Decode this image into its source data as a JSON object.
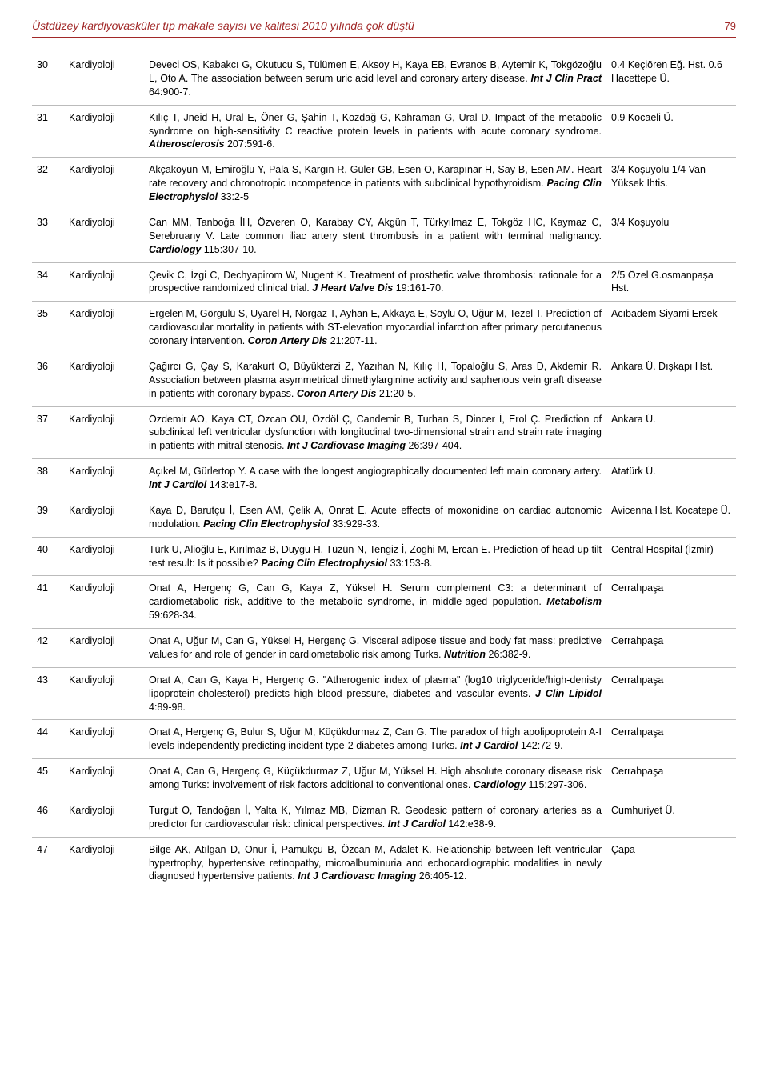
{
  "header": {
    "title": "Üstdüzey kardiyovasküler tıp makale sayısı ve kalitesi 2010 yılında çok düştü",
    "page_number": "79"
  },
  "rows": [
    {
      "num": "30",
      "field": "Kardiyoloji",
      "desc_pre": "Deveci OS, Kabakcı G, Okutucu S, Tülümen E, Aksoy H, Kaya EB, Evranos B, Aytemir K, Tokgözoğlu L, Oto A. The association between serum uric acid level and coronary artery disease. ",
      "journal": "Int J Clin Pract",
      "desc_post": " 64:900-7.",
      "aff": "0.4 Keçiören Eğ. Hst. 0.6 Hacettepe Ü."
    },
    {
      "num": "31",
      "field": "Kardiyoloji",
      "desc_pre": "Kılıç T, Jneid H, Ural E, Öner G, Şahin T, Kozdağ G, Kahraman G, Ural D. Impact of the metabolic syndrome on high-sensitivity C reactive protein levels in patients with acute coronary syndrome. ",
      "journal": "Atherosclerosis",
      "desc_post": " 207:591-6.",
      "aff": "0.9 Kocaeli Ü."
    },
    {
      "num": "32",
      "field": "Kardiyoloji",
      "desc_pre": "Akçakoyun M, Emiroğlu Y, Pala S, Kargın R, Güler GB, Esen O, Karapınar H, Say B, Esen AM. Heart rate recovery and chronotropic ıncompetence in patients with subclinical hypothyroidism. ",
      "journal": "Pacing Clin Electrophysiol",
      "desc_post": " 33:2-5",
      "aff": "3/4 Koşuyolu 1/4 Van Yüksek İhtis."
    },
    {
      "num": "33",
      "field": "Kardiyoloji",
      "desc_pre": "Can MM, Tanboğa İH, Özveren O, Karabay CY, Akgün T, Türkyılmaz E, Tokgöz HC, Kaymaz C, Serebruany V. Late common iliac artery stent thrombosis in a patient with terminal malignancy. ",
      "journal": "Cardiology",
      "desc_post": " 115:307-10.",
      "aff": "3/4 Koşuyolu"
    },
    {
      "num": "34",
      "field": "Kardiyoloji",
      "desc_pre": "Çevik C, İzgi C, Dechyapirom W, Nugent K. Treatment of prosthetic valve thrombosis: rationale for a prospective randomized clinical trial. ",
      "journal": "J Heart Valve Dis",
      "desc_post": " 19:161-70.",
      "aff": "2/5 Özel G.osmanpaşa Hst."
    },
    {
      "num": "35",
      "field": "Kardiyoloji",
      "desc_pre": "Ergelen M, Görgülü S, Uyarel H, Norgaz T, Ayhan E, Akkaya E, Soylu O, Uğur M, Tezel T. Prediction of cardiovascular mortality in patients with ST-elevation myocardial infarction after primary percutaneous coronary intervention. ",
      "journal": "Coron Artery Dis",
      "desc_post": " 21:207-11.",
      "aff": "Acıbadem Siyami Ersek"
    },
    {
      "num": "36",
      "field": "Kardiyoloji",
      "desc_pre": "Çağırcı G, Çay S, Karakurt O, Büyükterzi Z, Yazıhan N, Kılıç H, Topaloğlu S, Aras D, Akdemir R. Association between plasma asymmetrical dimethylarginine activity and saphenous vein graft disease in patients with coronary bypass. ",
      "journal": "Coron Artery Dis",
      "desc_post": " 21:20-5.",
      "aff": "Ankara Ü. Dışkapı Hst."
    },
    {
      "num": "37",
      "field": "Kardiyoloji",
      "desc_pre": "Özdemir AO, Kaya CT, Özcan ÖU, Özdöl Ç, Candemir B, Turhan S, Dincer İ, Erol Ç. Prediction of subclinical left ventricular dysfunction with longitudinal two-dimensional strain and strain rate imaging in patients with mitral stenosis. ",
      "journal": "Int J Cardiovasc Imaging",
      "desc_post": " 26:397-404.",
      "aff": "Ankara Ü."
    },
    {
      "num": "38",
      "field": "Kardiyoloji",
      "desc_pre": "Açıkel M, Gürlertop Y. A case with the longest angiographically documented left main coronary artery. ",
      "journal": "Int J Cardiol",
      "desc_post": " 143:e17-8.",
      "aff": "Atatürk Ü."
    },
    {
      "num": "39",
      "field": "Kardiyoloji",
      "desc_pre": "Kaya D, Barutçu İ, Esen AM, Çelik A, Onrat E. Acute effects of moxonidine on cardiac autonomic modulation. ",
      "journal": "Pacing Clin Electrophysiol",
      "desc_post": " 33:929-33.",
      "aff": "Avicenna Hst. Kocatepe Ü."
    },
    {
      "num": "40",
      "field": "Kardiyoloji",
      "desc_pre": "Türk U, Alioğlu E, Kırılmaz B, Duygu H, Tüzün N, Tengiz İ, Zoghi M, Ercan E. Prediction of head-up tilt test result: Is it possible? ",
      "journal": "Pacing Clin Electrophysiol",
      "desc_post": " 33:153-8.",
      "aff": "Central Hospital (İzmir)"
    },
    {
      "num": "41",
      "field": "Kardiyoloji",
      "desc_pre": "Onat A, Hergenç G, Can G, Kaya Z, Yüksel H. Serum complement C3: a determinant of cardiometabolic risk, additive to the metabolic syndrome, in middle-aged population. ",
      "journal": "Metabolism",
      "desc_post": " 59:628-34.",
      "aff": "Cerrahpaşa"
    },
    {
      "num": "42",
      "field": "Kardiyoloji",
      "desc_pre": "Onat A, Uğur M, Can G, Yüksel H, Hergenç G. Visceral adipose tissue and body fat mass: predictive values for and role of gender in cardiometabolic risk among Turks. ",
      "journal": "Nutrition",
      "desc_post": " 26:382-9.",
      "aff": "Cerrahpaşa"
    },
    {
      "num": "43",
      "field": "Kardiyoloji",
      "desc_pre": "Onat A, Can G, Kaya H, Hergenç G. \"Atherogenic index of plasma\" (log10 triglyceride/high-denisty lipoprotein-cholesterol) predicts high blood pressure, diabetes and vascular events. ",
      "journal": "J Clin Lipidol",
      "desc_post": " 4:89-98.",
      "aff": "Cerrahpaşa"
    },
    {
      "num": "44",
      "field": "Kardiyoloji",
      "desc_pre": "Onat A, Hergenç G, Bulur S, Uğur M, Küçükdurmaz Z, Can G. The paradox of high apolipoprotein A-I levels independently predicting incident type-2 diabetes among Turks. ",
      "journal": "Int J Cardiol",
      "desc_post": " 142:72-9.",
      "aff": "Cerrahpaşa"
    },
    {
      "num": "45",
      "field": "Kardiyoloji",
      "desc_pre": "Onat A, Can G, Hergenç G, Küçükdurmaz Z, Uğur M, Yüksel H. High absolute coronary disease risk among Turks: involvement of risk factors additional to conventional ones. ",
      "journal": "Cardiology",
      "desc_post": " 115:297-306.",
      "aff": "Cerrahpaşa"
    },
    {
      "num": "46",
      "field": "Kardiyoloji",
      "desc_pre": "Turgut O, Tandoğan İ, Yalta K, Yılmaz MB, Dizman R. Geodesic pattern of coronary arteries as a predictor for cardiovascular risk: clinical perspectives. ",
      "journal": "Int J Cardiol",
      "desc_post": " 142:e38-9.",
      "aff": "Cumhuriyet Ü."
    },
    {
      "num": "47",
      "field": "Kardiyoloji",
      "desc_pre": "Bilge AK, Atılgan D, Onur İ, Pamukçu B, Özcan M, Adalet K. Relationship between left ventricular hypertrophy, hypertensive retinopathy, microalbuminuria and echocardiographic modalities in newly diagnosed hypertensive patients. ",
      "journal": "Int J Cardiovasc Imaging",
      "desc_post": " 26:405-12.",
      "aff": "Çapa"
    }
  ]
}
